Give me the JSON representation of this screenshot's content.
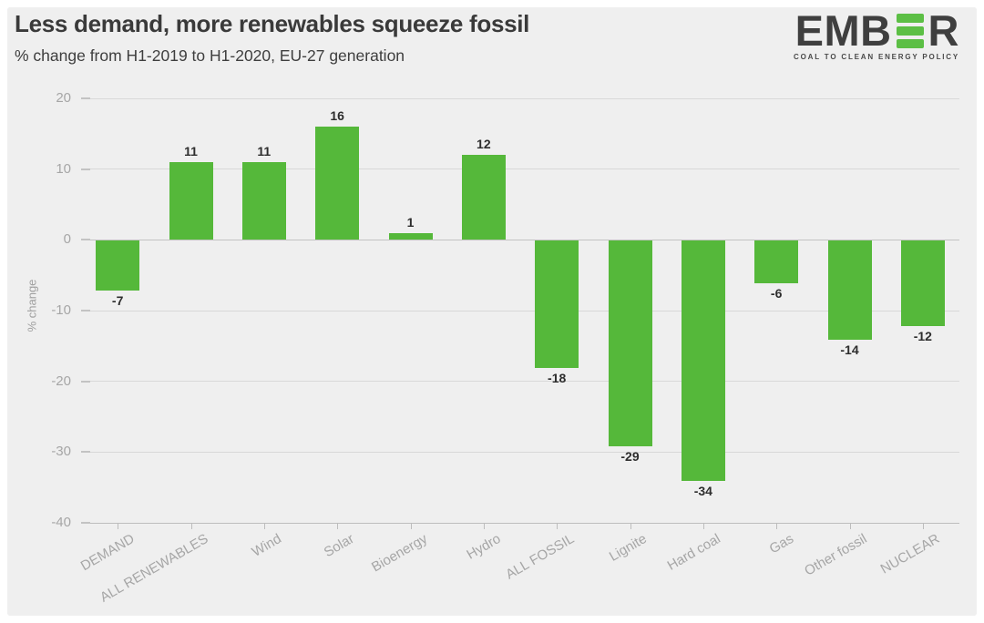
{
  "logo": {
    "word_left": "EMB",
    "word_right": "R",
    "tagline": "COAL TO CLEAN ENERGY POLICY",
    "green": "#5cbf45",
    "text_color": "#3f3f3f"
  },
  "chart_data": {
    "type": "bar",
    "title": "Less demand, more renewables squeeze fossil",
    "subtitle": "% change from H1-2019 to H1-2020, EU-27 generation",
    "ylabel": "% change",
    "xlabel": "",
    "categories": [
      "DEMAND",
      "ALL RENEWABLES",
      "Wind",
      "Solar",
      "Bioenergy",
      "Hydro",
      "ALL FOSSIL",
      "Lignite",
      "Hard coal",
      "Gas",
      "Other fossil",
      "NUCLEAR"
    ],
    "values": [
      -7,
      11,
      11,
      16,
      1,
      12,
      -18,
      -29,
      -34,
      -6,
      -14,
      -12
    ],
    "ylim": [
      -40,
      20
    ],
    "yticks": [
      20,
      10,
      0,
      -10,
      -20,
      -30,
      -40
    ],
    "grid": true,
    "legend": false,
    "bar_color": "#55b83a",
    "colors": {
      "background": "#efefef",
      "grid": "#d8d8d8",
      "zero_line": "#c3c3c3",
      "axis_line": "#bdbdbd",
      "axis_text": "#a6a6a6",
      "value_label": "#2d2d2d",
      "title_text": "#3a3a3a"
    }
  }
}
